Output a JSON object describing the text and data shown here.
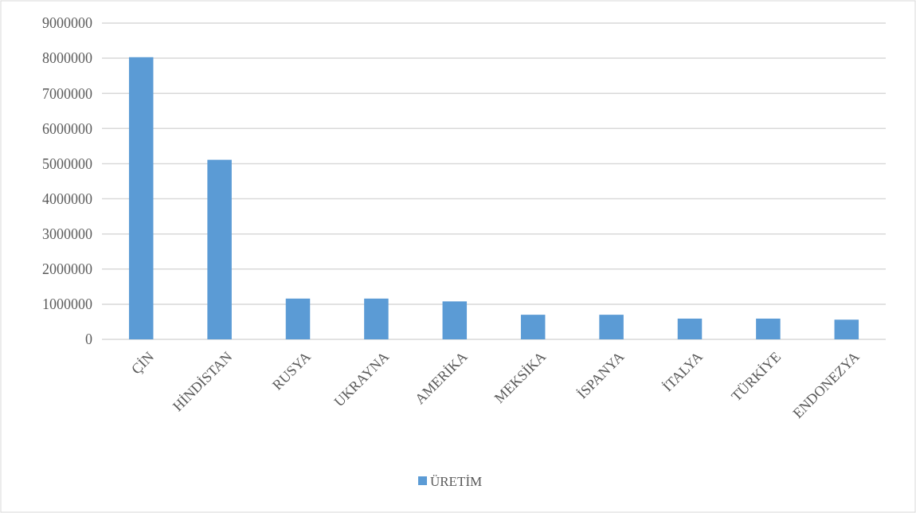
{
  "chart_data": {
    "type": "bar",
    "categories": [
      "ÇİN",
      "HİNDİSTAN",
      "RUSYA",
      "UKRAYNA",
      "AMERİKA",
      "MEKSİKA",
      "İSPANYA",
      "İTALYA",
      "TÜRKİYE",
      "ENDONEZYA"
    ],
    "series": [
      {
        "name": "ÜRETİM",
        "color": "#5b9bd5",
        "values": [
          8030000,
          5110000,
          1160000,
          1160000,
          1080000,
          700000,
          700000,
          590000,
          590000,
          560000
        ]
      }
    ],
    "ylim": [
      0,
      9000000
    ],
    "yticks": [
      0,
      1000000,
      2000000,
      3000000,
      4000000,
      5000000,
      6000000,
      7000000,
      8000000,
      9000000
    ],
    "grid": "y",
    "legend": "bottom"
  }
}
